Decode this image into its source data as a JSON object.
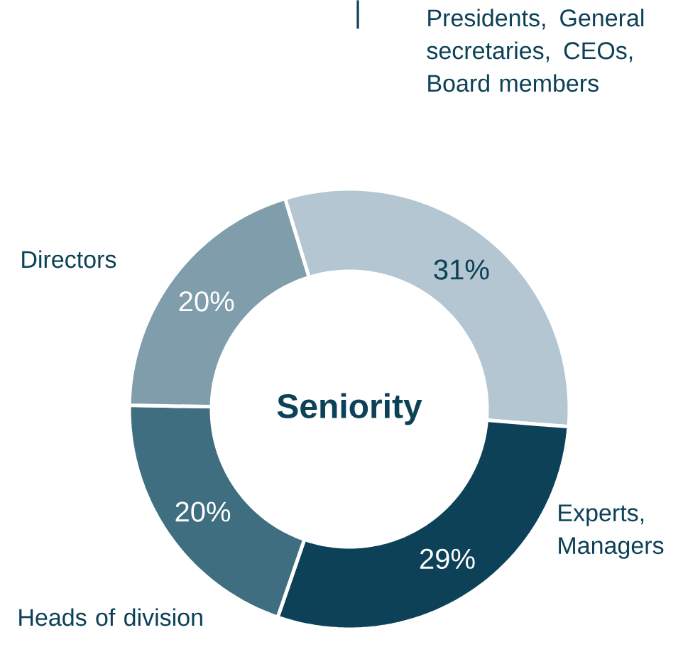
{
  "chart_data": {
    "type": "donut",
    "title": "Seniority",
    "categories": [
      "Presidents, General secretaries, CEOs, Board members",
      "Experts, Managers",
      "Heads of division",
      "Directors"
    ],
    "values": [
      31,
      29,
      20,
      20
    ],
    "colors": [
      "#b3c6d1",
      "#0c4157",
      "#3f6e80",
      "#7f9dab"
    ],
    "value_labels": [
      "31%",
      "29%",
      "20%",
      "20%"
    ]
  }
}
